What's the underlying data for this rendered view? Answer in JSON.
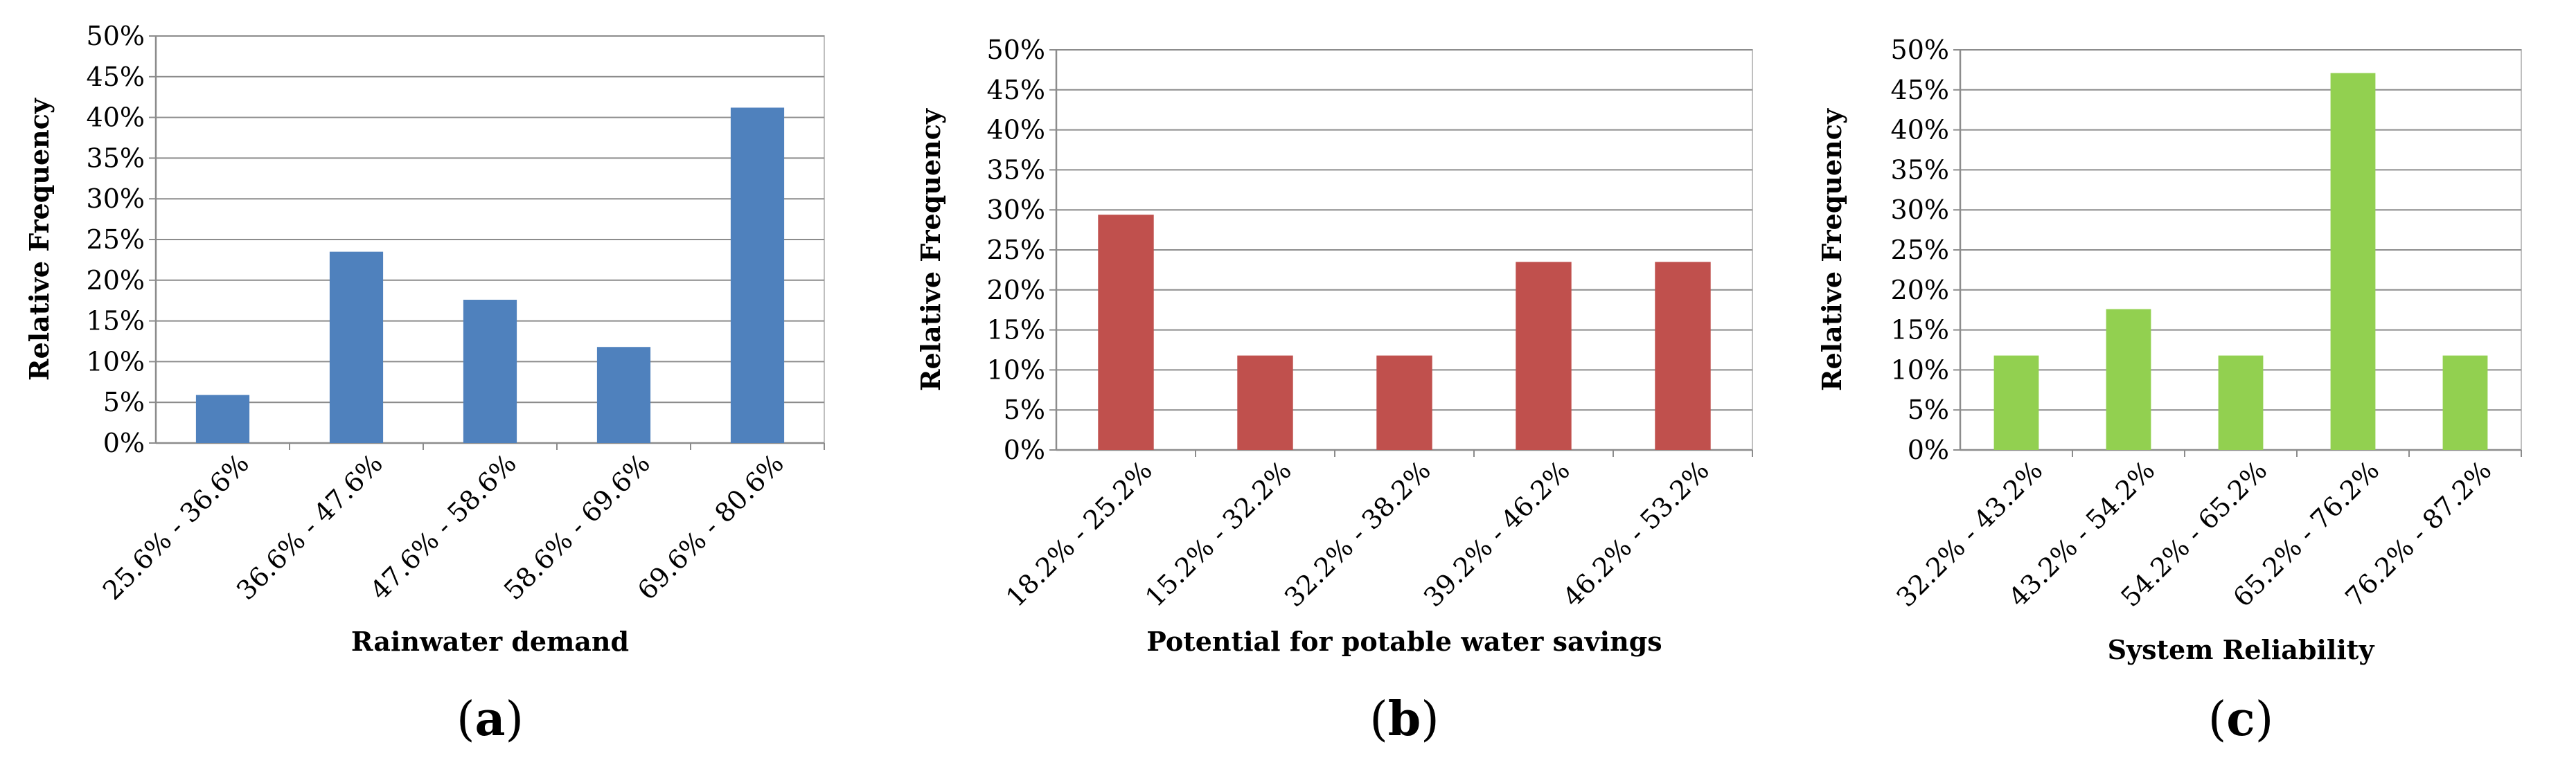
{
  "chart_data": [
    {
      "type": "bar",
      "panel_label": "a",
      "title": "",
      "xlabel": "Rainwater demand",
      "ylabel": "Relative Frequency",
      "categories": [
        "25.6% - 36.6%",
        "36.6% - 47.6%",
        "47.6% - 58.6%",
        "58.6% - 69.6%",
        "69.6% - 80.6%"
      ],
      "values": [
        5.9,
        23.5,
        17.6,
        11.8,
        41.2
      ],
      "ylim": [
        0,
        50
      ],
      "yticks": [
        "0%",
        "5%",
        "10%",
        "15%",
        "20%",
        "25%",
        "30%",
        "35%",
        "40%",
        "45%",
        "50%"
      ],
      "color": "#4F81BD",
      "grid": true
    },
    {
      "type": "bar",
      "panel_label": "b",
      "title": "",
      "xlabel": "Potential for potable water savings",
      "ylabel": "Relative Frequency",
      "categories": [
        "18.2% - 25.2%",
        "15.2% - 32.2%",
        "32.2% - 38.2%",
        "39.2% - 46.2%",
        "46.2% - 53.2%"
      ],
      "values": [
        29.4,
        11.8,
        11.8,
        23.5,
        23.5
      ],
      "ylim": [
        0,
        50
      ],
      "yticks": [
        "0%",
        "5%",
        "10%",
        "15%",
        "20%",
        "25%",
        "30%",
        "35%",
        "40%",
        "45%",
        "50%"
      ],
      "color": "#C0504D",
      "grid": true
    },
    {
      "type": "bar",
      "panel_label": "c",
      "title": "",
      "xlabel": "System Reliability",
      "ylabel": "Relative Frequency",
      "categories": [
        "32.2% - 43.2%",
        "43.2% - 54.2%",
        "54.2% - 65.2%",
        "65.2% - 76.2%",
        "76.2% - 87.2%"
      ],
      "values": [
        11.8,
        17.6,
        11.8,
        47.1,
        11.8
      ],
      "ylim": [
        0,
        50
      ],
      "yticks": [
        "0%",
        "5%",
        "10%",
        "15%",
        "20%",
        "25%",
        "30%",
        "35%",
        "40%",
        "45%",
        "50%"
      ],
      "color": "#92D050",
      "grid": true
    }
  ]
}
